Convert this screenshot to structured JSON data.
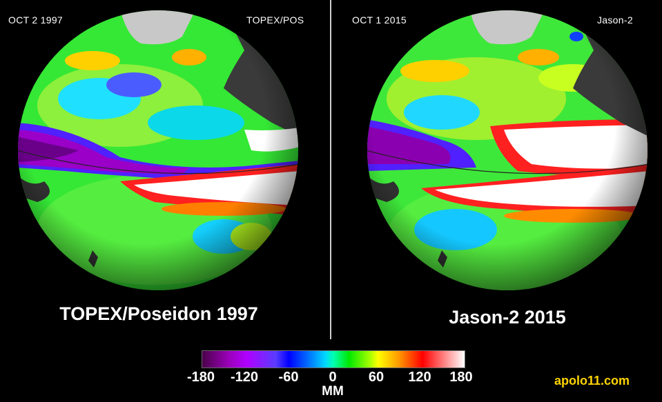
{
  "left_panel": {
    "date": "OCT  2  1997",
    "satellite": "TOPEX/POS",
    "caption": "TOPEX/Poseidon 1997"
  },
  "right_panel": {
    "date": "OCT  1  2015",
    "satellite": "Jason-2",
    "caption": "Jason-2 2015"
  },
  "colorbar": {
    "ticks": [
      "-180",
      "-120",
      "-60",
      "0",
      "60",
      "120",
      "180"
    ],
    "unit": "MM"
  },
  "credit": "apolo11.com",
  "colors": {
    "background": "#000000",
    "credit": "#ffd400",
    "land": "#3a3a3a",
    "ice": "#c8c8c8"
  }
}
